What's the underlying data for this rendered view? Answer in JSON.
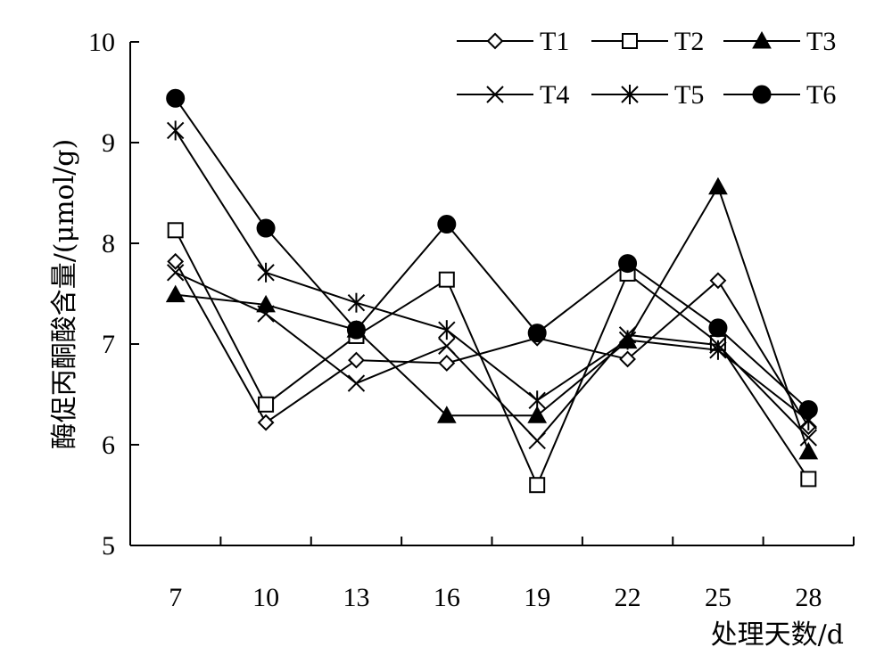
{
  "chart_data": {
    "type": "line",
    "title": "",
    "xlabel": "处理天数/d",
    "ylabel": "酶促丙酮酸含量/(μmol/g)",
    "x": [
      7,
      10,
      13,
      16,
      19,
      22,
      25,
      28
    ],
    "ylim": [
      5,
      10
    ],
    "yticks": [
      5,
      6,
      7,
      8,
      9,
      10
    ],
    "grid": false,
    "legend_position": "top-right",
    "series": [
      {
        "name": "T1",
        "marker": "diamond-open",
        "values": [
          7.82,
          6.22,
          6.84,
          6.81,
          7.06,
          6.85,
          7.63,
          6.18
        ]
      },
      {
        "name": "T2",
        "marker": "square-open",
        "values": [
          8.13,
          6.4,
          7.08,
          7.64,
          5.6,
          7.7,
          7.01,
          5.66
        ]
      },
      {
        "name": "T3",
        "marker": "triangle-filled",
        "values": [
          7.49,
          7.39,
          7.14,
          6.29,
          6.29,
          7.03,
          8.56,
          5.93
        ]
      },
      {
        "name": "T4",
        "marker": "x",
        "values": [
          7.71,
          7.3,
          6.61,
          6.98,
          6.04,
          7.09,
          6.99,
          6.07
        ]
      },
      {
        "name": "T5",
        "marker": "star",
        "values": [
          9.12,
          7.71,
          7.41,
          7.14,
          6.44,
          7.04,
          6.94,
          6.24
        ]
      },
      {
        "name": "T6",
        "marker": "circle-filled",
        "values": [
          9.44,
          8.15,
          7.14,
          8.19,
          7.11,
          7.8,
          7.16,
          6.35
        ]
      }
    ]
  }
}
